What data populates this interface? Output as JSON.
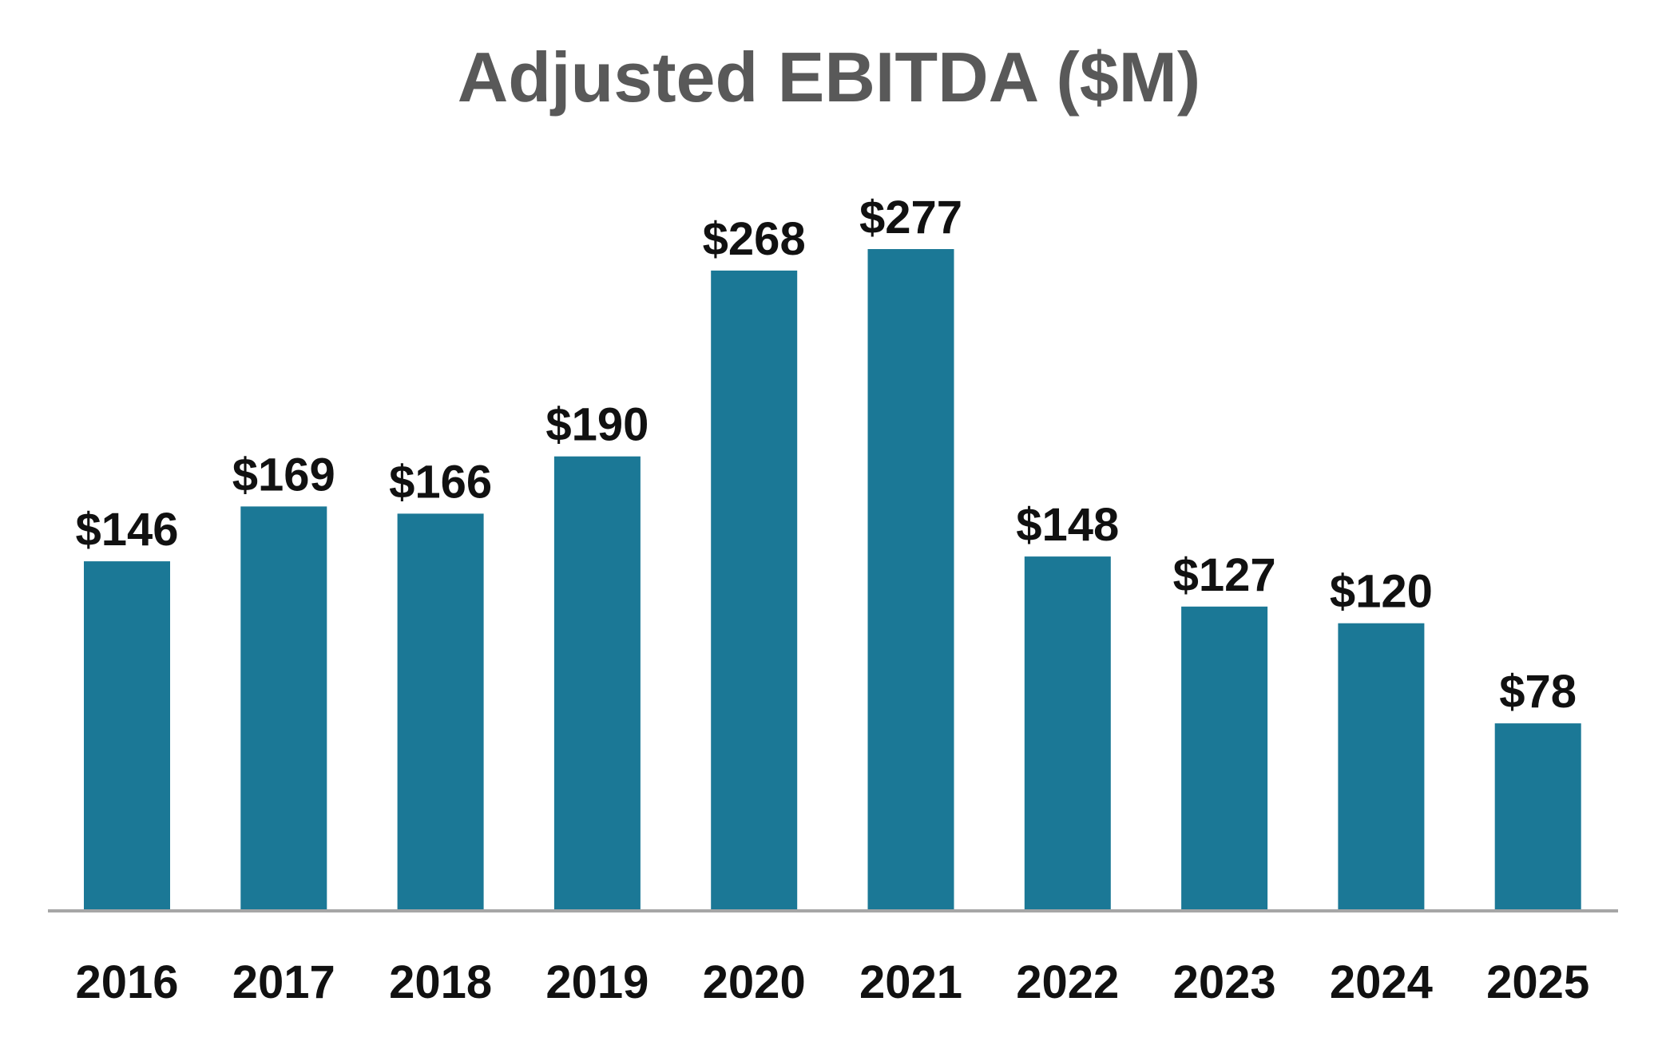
{
  "chart_data": {
    "type": "bar",
    "title": "Adjusted EBITDA ($M)",
    "categories": [
      "2016",
      "2017",
      "2018",
      "2019",
      "2020",
      "2021",
      "2022",
      "2023",
      "2024",
      "2025"
    ],
    "values": [
      146,
      169,
      166,
      190,
      268,
      277,
      148,
      127,
      120,
      78
    ],
    "data_labels": [
      "$146",
      "$169",
      "$166",
      "$190",
      "$268",
      "$277",
      "$148",
      "$127",
      "$120",
      "$78"
    ],
    "xlabel": "",
    "ylabel": "",
    "ylim": [
      0,
      277
    ],
    "grid": false,
    "legend": "none",
    "colors": {
      "bar": "#1b7896",
      "title": "#595959",
      "labels": "#111111",
      "axis": "#a6a6a6"
    }
  }
}
